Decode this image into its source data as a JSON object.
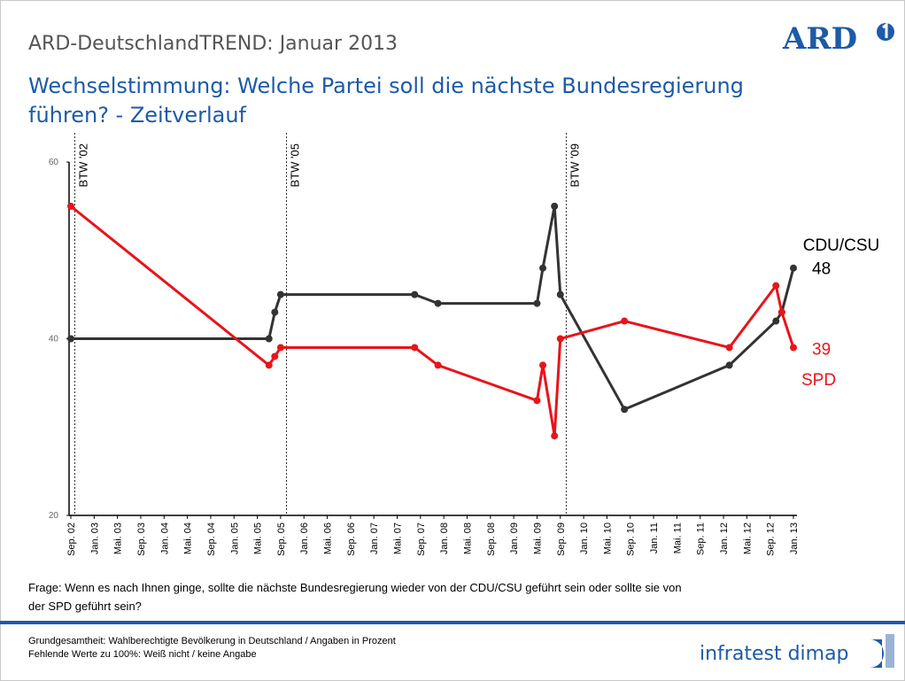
{
  "header": {
    "kicker": "ARD-DeutschlandTREND: Januar 2013",
    "logo": "ARD"
  },
  "chart_data": {
    "type": "line",
    "title": [
      "Wechselstimmung: Welche Partei soll die nächste Bundesregierung",
      "führen? - Zeitverlauf"
    ],
    "x": [
      0,
      34,
      35,
      36,
      59,
      63,
      80,
      81,
      83,
      84,
      95,
      113,
      121,
      122,
      124
    ],
    "xlim": [
      0,
      124
    ],
    "xticks": [
      {
        "value": 0,
        "label": "Sep. 02"
      },
      {
        "value": 4,
        "label": "Jan. 03"
      },
      {
        "value": 8,
        "label": "Mai. 03"
      },
      {
        "value": 12,
        "label": "Sep. 03"
      },
      {
        "value": 16,
        "label": "Jan. 04"
      },
      {
        "value": 20,
        "label": "Mai. 04"
      },
      {
        "value": 24,
        "label": "Sep. 04"
      },
      {
        "value": 28,
        "label": "Jan. 05"
      },
      {
        "value": 32,
        "label": "Mai. 05"
      },
      {
        "value": 36,
        "label": "Sep. 05"
      },
      {
        "value": 40,
        "label": "Jan. 06"
      },
      {
        "value": 44,
        "label": "Mai. 06"
      },
      {
        "value": 48,
        "label": "Sep. 06"
      },
      {
        "value": 52,
        "label": "Jan. 07"
      },
      {
        "value": 56,
        "label": "Mai. 07"
      },
      {
        "value": 60,
        "label": "Sep. 07"
      },
      {
        "value": 64,
        "label": "Jan. 08"
      },
      {
        "value": 68,
        "label": "Mai. 08"
      },
      {
        "value": 72,
        "label": "Sep. 08"
      },
      {
        "value": 76,
        "label": "Jan. 09"
      },
      {
        "value": 80,
        "label": "Mai. 09"
      },
      {
        "value": 84,
        "label": "Sep. 09"
      },
      {
        "value": 88,
        "label": "Jan. 10"
      },
      {
        "value": 92,
        "label": "Mai. 10"
      },
      {
        "value": 96,
        "label": "Sep. 10"
      },
      {
        "value": 100,
        "label": "Jan. 11"
      },
      {
        "value": 104,
        "label": "Mai. 11"
      },
      {
        "value": 108,
        "label": "Sep. 11"
      },
      {
        "value": 112,
        "label": "Jan. 12"
      },
      {
        "value": 116,
        "label": "Mai. 12"
      },
      {
        "value": 120,
        "label": "Sep. 12"
      },
      {
        "value": 124,
        "label": "Jan. 13"
      }
    ],
    "ylim": [
      20,
      60
    ],
    "yticks": [
      20,
      40,
      60
    ],
    "series": [
      {
        "name": "CDU/CSU",
        "color": "#333333",
        "values": [
          40,
          40,
          43,
          45,
          45,
          44,
          44,
          48,
          55,
          45,
          32,
          37,
          42,
          43,
          48
        ]
      },
      {
        "name": "SPD",
        "color": "#e8141b",
        "values": [
          55,
          37,
          38,
          39,
          39,
          37,
          33,
          37,
          29,
          40,
          42,
          39,
          46,
          43,
          39
        ]
      }
    ],
    "annotations": [
      {
        "text": "BTW '02",
        "x": 0.7
      },
      {
        "text": "BTW '05",
        "x": 37
      },
      {
        "text": "BTW '09",
        "x": 85
      }
    ]
  },
  "question": [
    "Frage: Wenn es nach Ihnen ginge, sollte die nächste Bundesregierung wieder von der CDU/CSU geführt sein oder sollte sie von",
    "der SPD geführt sein?"
  ],
  "footer": {
    "notes": [
      "Grundgesamtheit: Wahlberechtigte Bevölkerung in Deutschland / Angaben in Prozent",
      "Fehlende Werte zu 100%: Weiß nicht / keine Angabe"
    ],
    "brand": "infratest dimap"
  }
}
